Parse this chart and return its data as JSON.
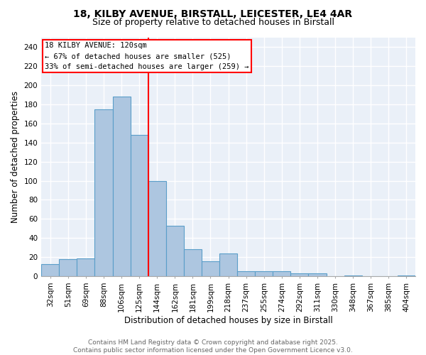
{
  "title_line1": "18, KILBY AVENUE, BIRSTALL, LEICESTER, LE4 4AR",
  "title_line2": "Size of property relative to detached houses in Birstall",
  "xlabel": "Distribution of detached houses by size in Birstall",
  "ylabel": "Number of detached properties",
  "categories": [
    "32sqm",
    "51sqm",
    "69sqm",
    "88sqm",
    "106sqm",
    "125sqm",
    "144sqm",
    "162sqm",
    "181sqm",
    "199sqm",
    "218sqm",
    "237sqm",
    "255sqm",
    "274sqm",
    "292sqm",
    "311sqm",
    "330sqm",
    "348sqm",
    "367sqm",
    "385sqm",
    "404sqm"
  ],
  "values": [
    13,
    18,
    19,
    175,
    188,
    148,
    100,
    53,
    28,
    16,
    24,
    5,
    5,
    5,
    3,
    3,
    0,
    1,
    0,
    0,
    1
  ],
  "bar_color": "#adc6e0",
  "bar_edgecolor": "#5a9ec9",
  "vline_x_index": 5,
  "vline_color": "red",
  "vline_linewidth": 1.5,
  "annotation_text": "18 KILBY AVENUE: 120sqm\n← 67% of detached houses are smaller (525)\n33% of semi-detached houses are larger (259) →",
  "annotation_box_color": "white",
  "annotation_box_edgecolor": "red",
  "ylim": [
    0,
    250
  ],
  "yticks": [
    0,
    20,
    40,
    60,
    80,
    100,
    120,
    140,
    160,
    180,
    200,
    220,
    240
  ],
  "background_color": "#eaf0f8",
  "footer_text": "Contains HM Land Registry data © Crown copyright and database right 2025.\nContains public sector information licensed under the Open Government Licence v3.0.",
  "grid_color": "white",
  "title_fontsize": 10,
  "subtitle_fontsize": 9,
  "axis_label_fontsize": 8.5,
  "tick_fontsize": 7.5,
  "footer_fontsize": 6.5,
  "annotation_fontsize": 7.5
}
